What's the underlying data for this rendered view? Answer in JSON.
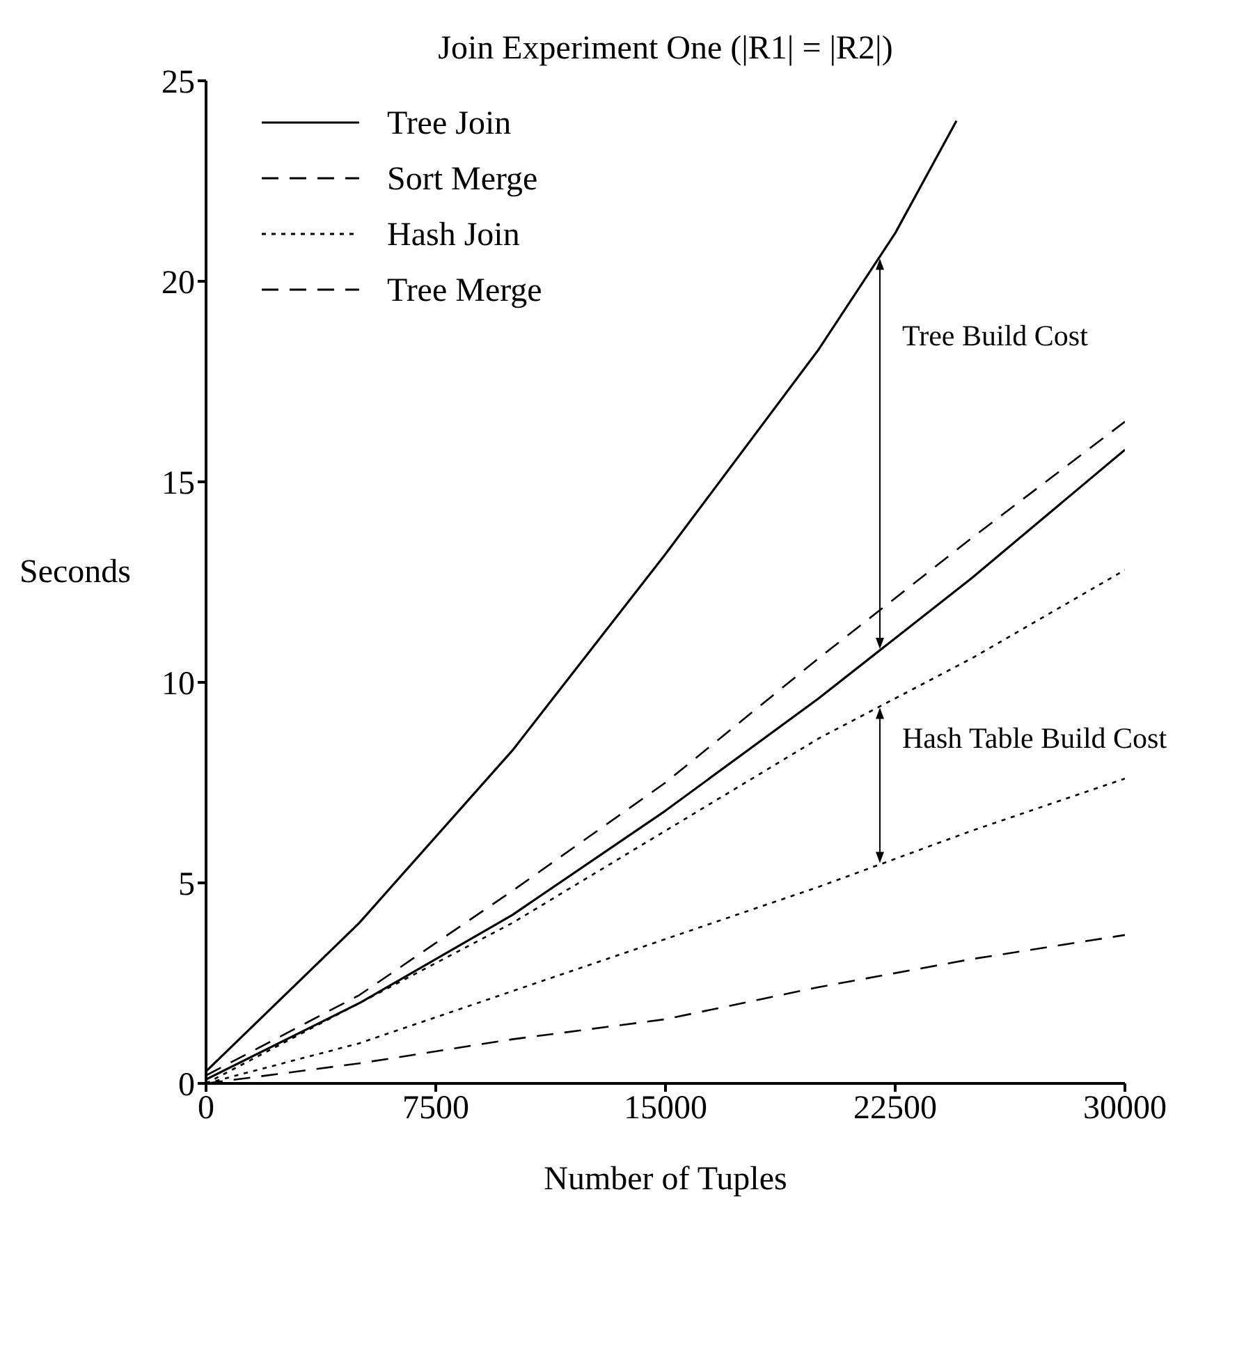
{
  "chart_data": {
    "type": "line",
    "title": "Join Experiment One (|R1| = |R2|)",
    "xlabel": "Number of Tuples",
    "ylabel": "Seconds",
    "xlim": [
      0,
      30000
    ],
    "xticks": [
      0,
      7500,
      15000,
      22500,
      30000
    ],
    "ylim": [
      0,
      25
    ],
    "yticks": [
      0,
      5,
      10,
      15,
      20,
      25
    ],
    "grid": false,
    "legend": "top left",
    "marker": "none",
    "series": [
      {
        "name": "Tree Join",
        "color": "#000000",
        "line_style": "solid",
        "x": [
          0,
          5000,
          10000,
          15000,
          20000,
          22500,
          24500
        ],
        "values": [
          0.3,
          4,
          8.3,
          13.2,
          18.3,
          21.2,
          24
        ]
      },
      {
        "color": "#000000",
        "line_style": "solid",
        "x": [
          0,
          5000,
          10000,
          15000,
          20000,
          25000,
          30000
        ],
        "values": [
          0.1,
          2,
          4.2,
          6.8,
          9.6,
          12.6,
          15.8
        ]
      },
      {
        "name": "Sort Merge",
        "color": "#000000",
        "line_style": "dashed",
        "x": [
          0,
          5000,
          10000,
          15000,
          20000,
          25000,
          30000
        ],
        "values": [
          0.2,
          2.2,
          4.8,
          7.5,
          10.6,
          13.6,
          16.5
        ]
      },
      {
        "name": "Hash Join",
        "color": "#000000",
        "line_style": "dotted",
        "x": [
          0,
          5000,
          10000,
          15000,
          20000,
          25000,
          30000
        ],
        "values": [
          0,
          2,
          4,
          6.3,
          8.6,
          10.6,
          12.8
        ]
      },
      {
        "color": "#000000",
        "line_style": "dotted",
        "x": [
          0,
          5000,
          10000,
          15000,
          20000,
          25000,
          30000
        ],
        "values": [
          0,
          1,
          2.3,
          3.6,
          4.9,
          6.3,
          7.6
        ]
      },
      {
        "name": "Tree Merge",
        "color": "#000000",
        "line_style": "dashed",
        "x": [
          0,
          5000,
          10000,
          15000,
          20000,
          25000,
          30000
        ],
        "values": [
          0,
          0.5,
          1.1,
          1.6,
          2.4,
          3.1,
          3.7
        ]
      }
    ],
    "annotations": [
      {
        "text": "Tree Build Cost",
        "x": 22000,
        "y": 20.6
      },
      {
        "text": "Hash Table Build Cost",
        "x": 22000,
        "y": 9.4
      }
    ]
  }
}
